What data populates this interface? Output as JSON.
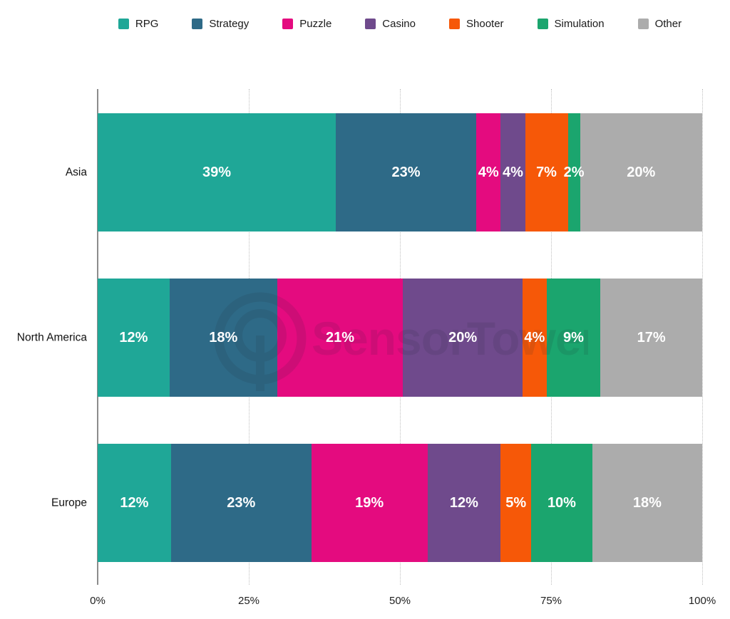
{
  "chart_data": {
    "type": "bar",
    "variant": "stacked-horizontal-100",
    "title": "",
    "xlabel": "",
    "ylabel": "",
    "xlim": [
      0,
      100
    ],
    "x_ticks": [
      "0%",
      "25%",
      "50%",
      "75%",
      "100%"
    ],
    "grid": "dotted-vertical",
    "legend_position": "top",
    "value_suffix": "%",
    "categories": [
      "Asia",
      "North America",
      "Europe"
    ],
    "series": [
      {
        "name": "RPG",
        "color": "#1FA797",
        "values": [
          39,
          12,
          12
        ]
      },
      {
        "name": "Strategy",
        "color": "#2E6A87",
        "values": [
          23,
          18,
          23
        ]
      },
      {
        "name": "Puzzle",
        "color": "#E40B7F",
        "values": [
          4,
          21,
          19
        ]
      },
      {
        "name": "Casino",
        "color": "#6F4A8C",
        "values": [
          4,
          20,
          12
        ]
      },
      {
        "name": "Shooter",
        "color": "#F65808",
        "values": [
          7,
          4,
          5
        ]
      },
      {
        "name": "Simulation",
        "color": "#1BA56E",
        "values": [
          2,
          9,
          10
        ]
      },
      {
        "name": "Other",
        "color": "#ACACAC",
        "values": [
          20,
          17,
          18
        ]
      }
    ]
  },
  "watermark": {
    "text": "SensorTower",
    "logo": "sensor-tower-logo",
    "color": "#1E2430"
  },
  "style_colors": {
    "axis_line": "#8C8C8C",
    "gridline": "#BFBFBF",
    "bar_label": "#FFFFFF",
    "text": "#1A1A1A"
  }
}
